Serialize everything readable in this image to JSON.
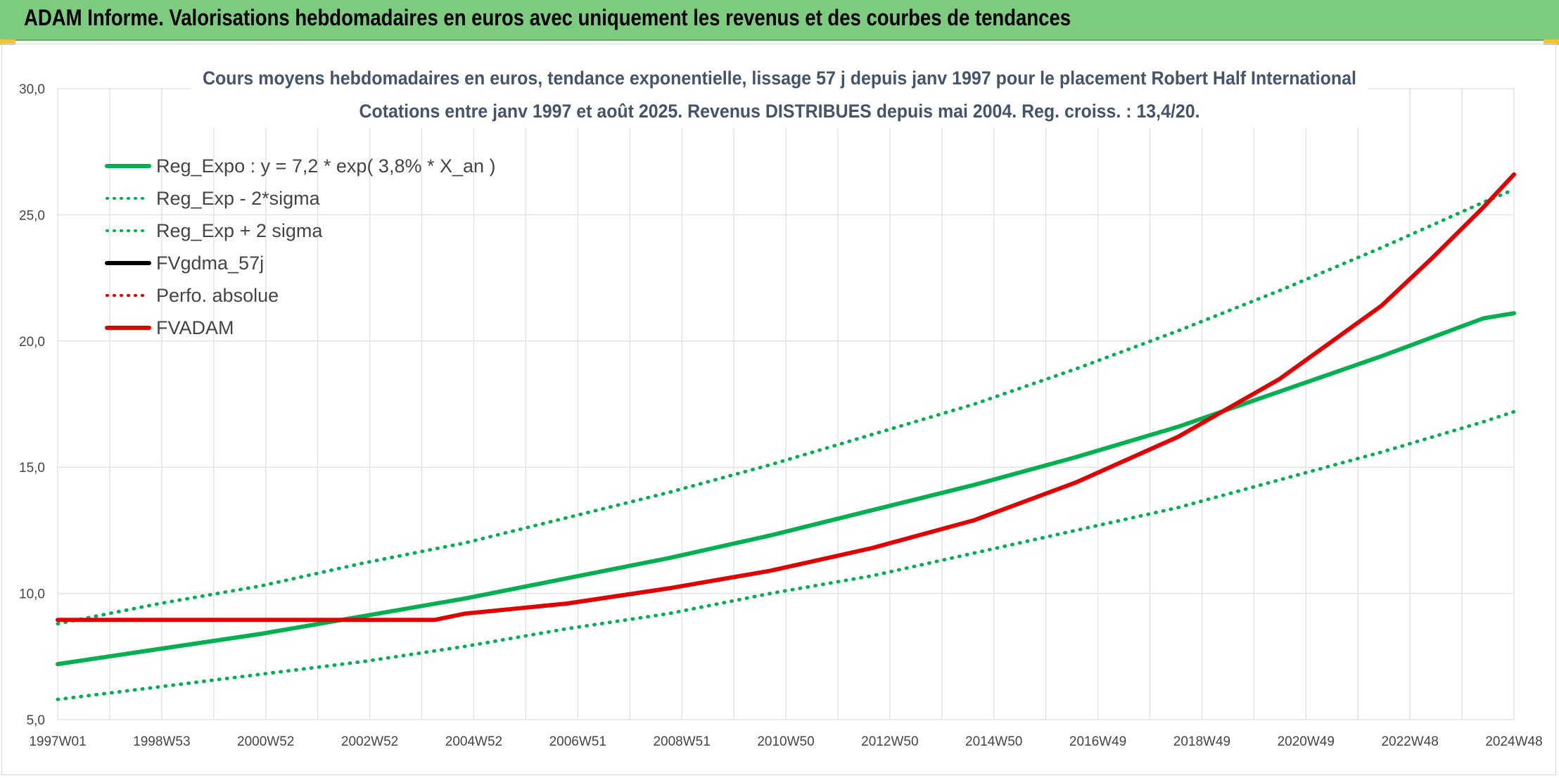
{
  "header": {
    "title": "ADAM Informe. Valorisations hebdomadaires en euros avec uniquement les revenus et des courbes de tendances"
  },
  "chart_data": {
    "type": "line",
    "title_lines": [
      "Cours moyens hebdomadaires en euros, tendance exponentielle, lissage 57 j depuis janv 1997 pour le placement Robert Half International",
      "Cotations entre janv 1997 et août 2025. Revenus DISTRIBUES depuis mai 2004. Reg. croiss. : 13,4/20."
    ],
    "xlabel": "",
    "ylabel": "",
    "ylim": [
      5.0,
      30.0
    ],
    "y_ticks": [
      "5,0",
      "10,0",
      "15,0",
      "20,0",
      "25,0",
      "30,0"
    ],
    "x_ticks": [
      "1997W01",
      "1998W53",
      "2000W52",
      "2002W52",
      "2004W52",
      "2006W51",
      "2008W51",
      "2010W50",
      "2012W50",
      "2014W50",
      "2016W49",
      "2018W49",
      "2020W49",
      "2022W48",
      "2024W48"
    ],
    "grid": true,
    "legend_position": "top-left",
    "colors": {
      "green": "#00b050",
      "red": "#e00000",
      "black": "#000000"
    },
    "series": [
      {
        "name": "Reg_Expo : y = 7,2 * exp( 3,8% *  X_an )",
        "style": "solid",
        "color": "#00b050",
        "x": [
          1997,
          1999,
          2001,
          2003,
          2005,
          2007,
          2009,
          2011,
          2013,
          2015,
          2017,
          2019,
          2021,
          2023,
          2025,
          2025.6
        ],
        "values": [
          7.2,
          7.8,
          8.4,
          9.1,
          9.8,
          10.6,
          11.4,
          12.3,
          13.3,
          14.3,
          15.4,
          16.6,
          18.0,
          19.4,
          20.9,
          21.1
        ]
      },
      {
        "name": "Reg_Exp - 2*sigma",
        "style": "dotted",
        "color": "#00b050",
        "x": [
          1997,
          1999,
          2001,
          2003,
          2005,
          2007,
          2009,
          2011,
          2013,
          2015,
          2017,
          2019,
          2021,
          2023,
          2025,
          2025.6
        ],
        "values": [
          5.8,
          6.3,
          6.8,
          7.3,
          7.9,
          8.6,
          9.2,
          10.0,
          10.7,
          11.6,
          12.5,
          13.4,
          14.5,
          15.6,
          16.8,
          17.2
        ]
      },
      {
        "name": "Reg_Exp + 2 sigma",
        "style": "dotted",
        "color": "#00b050",
        "x": [
          1997,
          1999,
          2001,
          2003,
          2005,
          2007,
          2009,
          2011,
          2013,
          2015,
          2017,
          2019,
          2021,
          2023,
          2025,
          2025.6
        ],
        "values": [
          8.8,
          9.6,
          10.3,
          11.2,
          12.0,
          13.0,
          14.0,
          15.1,
          16.3,
          17.5,
          18.9,
          20.4,
          22.0,
          23.7,
          25.5,
          26.0
        ]
      },
      {
        "name": "FVgdma_57j",
        "style": "solid",
        "color": "#000000",
        "x": [],
        "values": []
      },
      {
        "name": "Perfo. absolue",
        "style": "dotted",
        "color": "#e00000",
        "x": [],
        "values": []
      },
      {
        "name": "FVADAM",
        "style": "solid",
        "color": "#e00000",
        "x": [
          1997,
          1999,
          2001,
          2003,
          2004.4,
          2005,
          2007,
          2009,
          2011,
          2013,
          2015,
          2017,
          2019,
          2021,
          2023,
          2024,
          2025,
          2025.6
        ],
        "values": [
          8.95,
          8.95,
          8.95,
          8.95,
          8.95,
          9.2,
          9.6,
          10.2,
          10.9,
          11.8,
          12.9,
          14.4,
          16.2,
          18.5,
          21.4,
          23.3,
          25.3,
          26.6
        ]
      }
    ]
  }
}
